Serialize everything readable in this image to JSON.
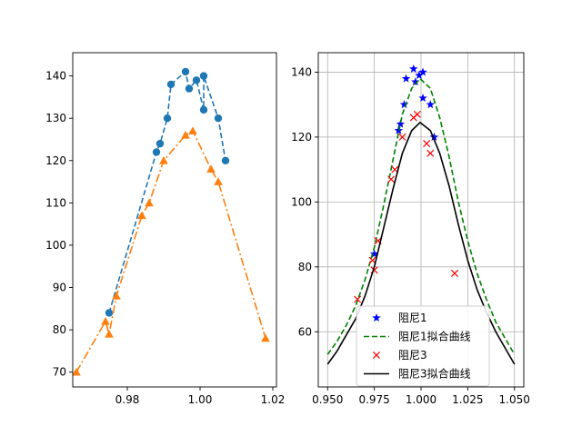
{
  "chart_data": [
    {
      "type": "line",
      "xlim": [
        0.965,
        1.021
      ],
      "ylim": [
        66.5,
        145.5
      ],
      "xticks": [
        "0.98",
        "1.00",
        "1.02"
      ],
      "xtick_values": [
        0.98,
        1.0,
        1.02
      ],
      "yticks": [
        "70",
        "80",
        "90",
        "100",
        "110",
        "120",
        "130",
        "140"
      ],
      "ytick_values": [
        70,
        80,
        90,
        100,
        110,
        120,
        130,
        140
      ],
      "grid": false,
      "series": [
        {
          "color": "#1f77b4",
          "linestyle": "dashed",
          "marker": "circle",
          "points": [
            [
              0.975,
              84
            ],
            [
              0.988,
              122
            ],
            [
              0.989,
              124
            ],
            [
              0.991,
              130
            ],
            [
              0.992,
              138
            ],
            [
              0.996,
              141
            ],
            [
              0.997,
              137
            ],
            [
              0.999,
              139
            ],
            [
              1.001,
              132
            ],
            [
              1.001,
              140
            ],
            [
              1.005,
              130
            ],
            [
              1.007,
              120
            ]
          ]
        },
        {
          "color": "#ff7f0e",
          "linestyle": "dashdot",
          "marker": "triangle",
          "points": [
            [
              0.966,
              70
            ],
            [
              0.974,
              82
            ],
            [
              0.975,
              79
            ],
            [
              0.977,
              88
            ],
            [
              0.984,
              107
            ],
            [
              0.986,
              110
            ],
            [
              0.99,
              120
            ],
            [
              0.996,
              126
            ],
            [
              0.998,
              127
            ],
            [
              1.003,
              118
            ],
            [
              1.005,
              115
            ],
            [
              1.018,
              78
            ]
          ]
        }
      ]
    },
    {
      "type": "scatter",
      "xlim": [
        0.945,
        1.055
      ],
      "ylim": [
        43,
        146
      ],
      "xticks": [
        "0.950",
        "0.975",
        "1.000",
        "1.025",
        "1.050"
      ],
      "xtick_values": [
        0.95,
        0.975,
        1.0,
        1.025,
        1.05
      ],
      "yticks": [
        "60",
        "80",
        "100",
        "120",
        "140"
      ],
      "ytick_values": [
        60,
        80,
        100,
        120,
        140
      ],
      "grid": true,
      "legend_position": "lower-center",
      "series": [
        {
          "name": "阻尼1",
          "kind": "marker",
          "color": "#0000ff",
          "marker": "star",
          "points": [
            [
              0.975,
              84
            ],
            [
              0.988,
              122
            ],
            [
              0.989,
              124
            ],
            [
              0.991,
              130
            ],
            [
              0.992,
              138
            ],
            [
              0.996,
              141
            ],
            [
              0.997,
              137
            ],
            [
              0.999,
              139
            ],
            [
              1.001,
              132
            ],
            [
              1.001,
              140
            ],
            [
              1.005,
              130
            ],
            [
              1.007,
              120
            ]
          ]
        },
        {
          "name": "阻尼1拟合曲线",
          "kind": "line",
          "color": "#008000",
          "linestyle": "dashed",
          "points": [
            [
              0.95,
              53
            ],
            [
              0.955,
              57
            ],
            [
              0.96,
              62
            ],
            [
              0.965,
              68
            ],
            [
              0.97,
              76
            ],
            [
              0.975,
              86
            ],
            [
              0.98,
              99
            ],
            [
              0.985,
              113
            ],
            [
              0.99,
              127
            ],
            [
              0.995,
              135
            ],
            [
              0.9995,
              138
            ],
            [
              1.005,
              135
            ],
            [
              1.01,
              126
            ],
            [
              1.015,
              114
            ],
            [
              1.02,
              100
            ],
            [
              1.025,
              88
            ],
            [
              1.03,
              78
            ],
            [
              1.035,
              70
            ],
            [
              1.04,
              63
            ],
            [
              1.045,
              58
            ],
            [
              1.05,
              53
            ]
          ]
        },
        {
          "name": "阻尼3",
          "kind": "marker",
          "color": "#ff0000",
          "marker": "x",
          "points": [
            [
              0.966,
              70
            ],
            [
              0.974,
              82
            ],
            [
              0.975,
              79
            ],
            [
              0.977,
              88
            ],
            [
              0.984,
              107
            ],
            [
              0.986,
              110
            ],
            [
              0.99,
              120
            ],
            [
              0.996,
              126
            ],
            [
              0.998,
              127
            ],
            [
              1.003,
              118
            ],
            [
              1.005,
              115
            ],
            [
              1.018,
              78
            ]
          ]
        },
        {
          "name": "阻尼3拟合曲线",
          "kind": "line",
          "color": "#000000",
          "linestyle": "solid",
          "points": [
            [
              0.95,
              50
            ],
            [
              0.955,
              54
            ],
            [
              0.96,
              59
            ],
            [
              0.965,
              64
            ],
            [
              0.97,
              71
            ],
            [
              0.975,
              80
            ],
            [
              0.98,
              92
            ],
            [
              0.985,
              104
            ],
            [
              0.99,
              115
            ],
            [
              0.995,
              122
            ],
            [
              0.9995,
              124.5
            ],
            [
              1.005,
              122
            ],
            [
              1.01,
              115
            ],
            [
              1.015,
              105
            ],
            [
              1.02,
              93
            ],
            [
              1.025,
              82
            ],
            [
              1.03,
              73
            ],
            [
              1.035,
              66
            ],
            [
              1.04,
              60
            ],
            [
              1.045,
              55
            ],
            [
              1.05,
              50
            ]
          ]
        }
      ]
    }
  ]
}
